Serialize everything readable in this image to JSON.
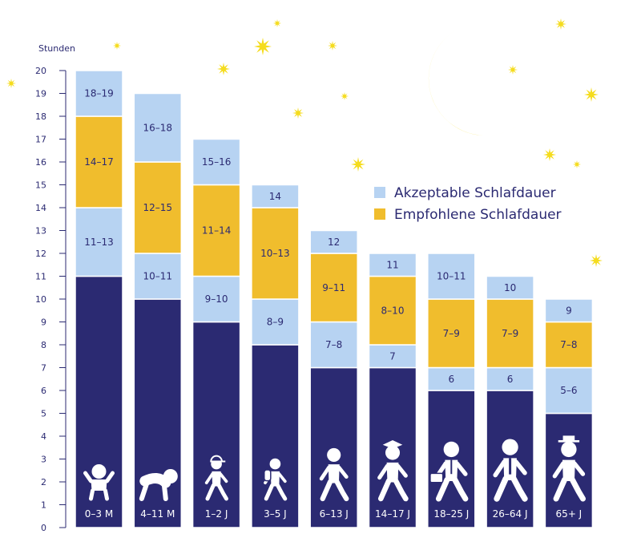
{
  "chart_data": {
    "type": "bar",
    "stacked": true,
    "ylabel": "Stunden",
    "ylim": [
      0,
      20
    ],
    "yticks": [
      0,
      1,
      2,
      3,
      4,
      5,
      6,
      7,
      8,
      9,
      10,
      11,
      12,
      13,
      14,
      15,
      16,
      17,
      18,
      19,
      20
    ],
    "grid": false,
    "legend_placement": "right",
    "categories": [
      "0–3 M",
      "4–11 M",
      "1–2 J",
      "3–5 J",
      "6–13 J",
      "14–17 J",
      "18–25 J",
      "26–64 J",
      "65+ J"
    ],
    "legend": [
      {
        "name": "Akzeptable Schlafdauer",
        "color": "#b7d3f2"
      },
      {
        "name": "Empfohlene Schlafdauer",
        "color": "#f0bd2d"
      }
    ],
    "bars": [
      {
        "category": "0–3 M",
        "segments": [
          {
            "from": 0,
            "to": 11,
            "kind": "base",
            "label": ""
          },
          {
            "from": 11,
            "to": 14,
            "kind": "acceptable",
            "label": "11–13"
          },
          {
            "from": 14,
            "to": 18,
            "kind": "recommended",
            "label": "14–17"
          },
          {
            "from": 18,
            "to": 20,
            "kind": "acceptable",
            "label": "18–19"
          }
        ]
      },
      {
        "category": "4–11 M",
        "segments": [
          {
            "from": 0,
            "to": 10,
            "kind": "base",
            "label": ""
          },
          {
            "from": 10,
            "to": 12,
            "kind": "acceptable",
            "label": "10–11"
          },
          {
            "from": 12,
            "to": 16,
            "kind": "recommended",
            "label": "12–15"
          },
          {
            "from": 16,
            "to": 19,
            "kind": "acceptable",
            "label": "16–18"
          }
        ]
      },
      {
        "category": "1–2 J",
        "segments": [
          {
            "from": 0,
            "to": 9,
            "kind": "base",
            "label": ""
          },
          {
            "from": 9,
            "to": 11,
            "kind": "acceptable",
            "label": "9–10"
          },
          {
            "from": 11,
            "to": 15,
            "kind": "recommended",
            "label": "11–14"
          },
          {
            "from": 15,
            "to": 17,
            "kind": "acceptable",
            "label": "15–16"
          }
        ]
      },
      {
        "category": "3–5 J",
        "segments": [
          {
            "from": 0,
            "to": 8,
            "kind": "base",
            "label": ""
          },
          {
            "from": 8,
            "to": 10,
            "kind": "acceptable",
            "label": "8–9"
          },
          {
            "from": 10,
            "to": 14,
            "kind": "recommended",
            "label": "10–13"
          },
          {
            "from": 14,
            "to": 15,
            "kind": "acceptable",
            "label": "14"
          }
        ]
      },
      {
        "category": "6–13 J",
        "segments": [
          {
            "from": 0,
            "to": 7,
            "kind": "base",
            "label": ""
          },
          {
            "from": 7,
            "to": 9,
            "kind": "acceptable",
            "label": "7–8"
          },
          {
            "from": 9,
            "to": 12,
            "kind": "recommended",
            "label": "9–11"
          },
          {
            "from": 12,
            "to": 13,
            "kind": "acceptable",
            "label": "12"
          }
        ]
      },
      {
        "category": "14–17 J",
        "segments": [
          {
            "from": 0,
            "to": 7,
            "kind": "base",
            "label": ""
          },
          {
            "from": 7,
            "to": 8,
            "kind": "acceptable",
            "label": "7"
          },
          {
            "from": 8,
            "to": 11,
            "kind": "recommended",
            "label": "8–10"
          },
          {
            "from": 11,
            "to": 12,
            "kind": "acceptable",
            "label": "11"
          }
        ]
      },
      {
        "category": "18–25 J",
        "segments": [
          {
            "from": 0,
            "to": 6,
            "kind": "base",
            "label": ""
          },
          {
            "from": 6,
            "to": 7,
            "kind": "acceptable",
            "label": "6"
          },
          {
            "from": 7,
            "to": 10,
            "kind": "recommended",
            "label": "7–9"
          },
          {
            "from": 10,
            "to": 12,
            "kind": "acceptable",
            "label": "10–11"
          }
        ]
      },
      {
        "category": "26–64 J",
        "segments": [
          {
            "from": 0,
            "to": 6,
            "kind": "base",
            "label": ""
          },
          {
            "from": 6,
            "to": 7,
            "kind": "acceptable",
            "label": "6"
          },
          {
            "from": 7,
            "to": 10,
            "kind": "recommended",
            "label": "7–9"
          },
          {
            "from": 10,
            "to": 11,
            "kind": "acceptable",
            "label": "10"
          }
        ]
      },
      {
        "category": "65+ J",
        "segments": [
          {
            "from": 0,
            "to": 5,
            "kind": "base",
            "label": ""
          },
          {
            "from": 5,
            "to": 7,
            "kind": "acceptable",
            "label": "5–6"
          },
          {
            "from": 7,
            "to": 9,
            "kind": "recommended",
            "label": "7–8"
          },
          {
            "from": 9,
            "to": 10,
            "kind": "acceptable",
            "label": "9"
          }
        ]
      }
    ]
  },
  "colors": {
    "base": "#2b2a72",
    "acceptable": "#b7d3f2",
    "recommended": "#f0bd2d",
    "moon": "#f5dc1d",
    "star": "#f5dc1d",
    "icon": "#ffffff"
  },
  "icons": [
    "baby-icon",
    "crawling-baby-icon",
    "toddler-cap-icon",
    "child-backpack-icon",
    "child-running-icon",
    "graduate-icon",
    "student-briefcase-icon",
    "adult-tie-icon",
    "senior-hat-icon"
  ]
}
